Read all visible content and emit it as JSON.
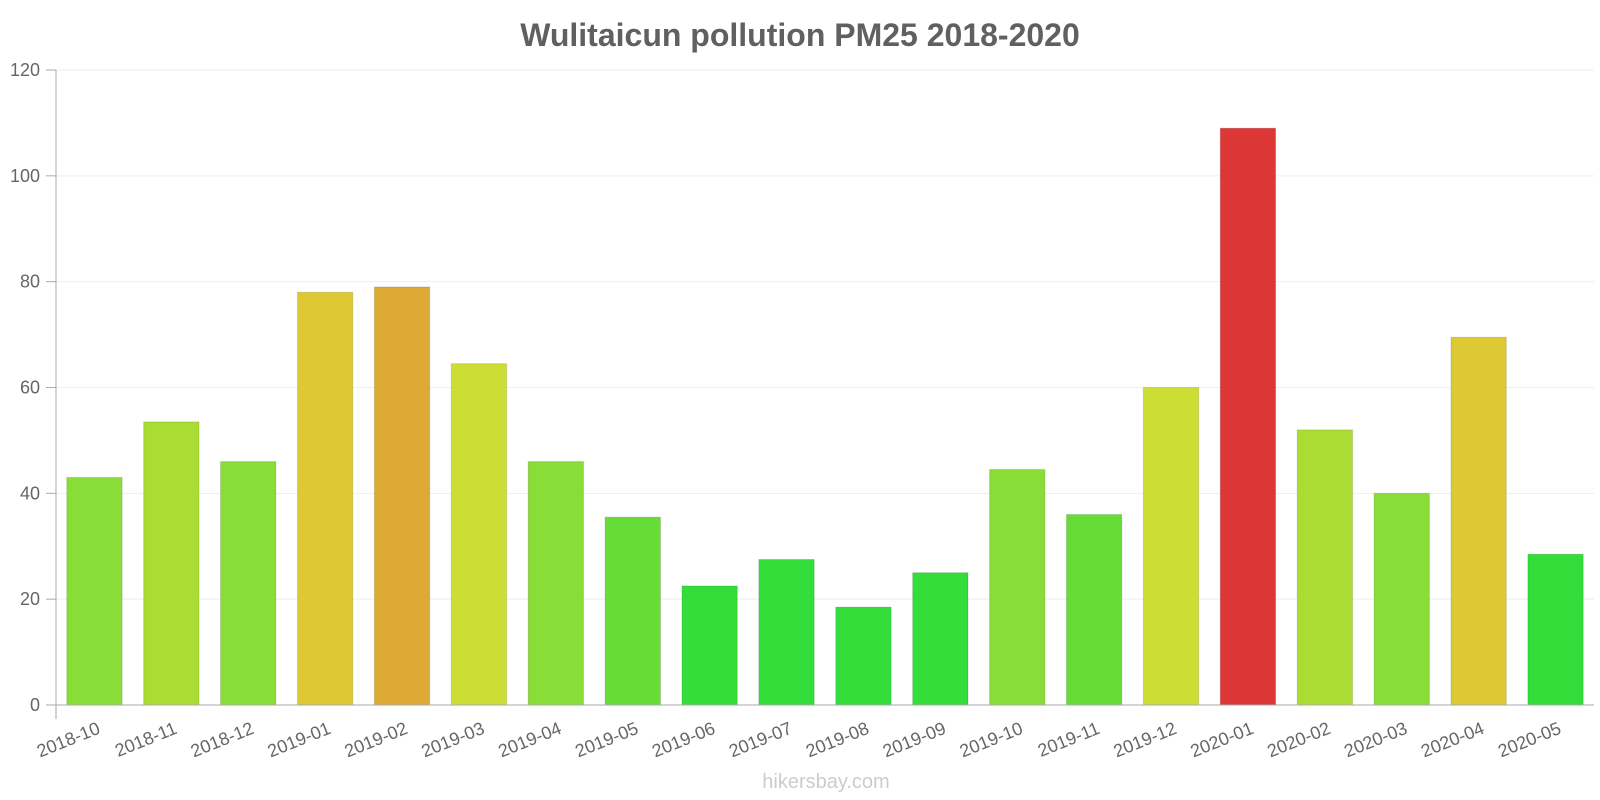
{
  "chart_data": {
    "type": "bar",
    "title": "Wulitaicun pollution PM25 2018-2020",
    "xlabel": "",
    "ylabel": "",
    "ylim": [
      0,
      120
    ],
    "yticks": [
      0,
      20,
      40,
      60,
      80,
      100,
      120
    ],
    "grid": true,
    "categories": [
      "2018-10",
      "2018-11",
      "2018-12",
      "2019-01",
      "2019-02",
      "2019-03",
      "2019-04",
      "2019-05",
      "2019-06",
      "2019-07",
      "2019-08",
      "2019-09",
      "2019-10",
      "2019-11",
      "2019-12",
      "2020-01",
      "2020-02",
      "2020-03",
      "2020-04",
      "2020-05"
    ],
    "values": [
      43,
      53.5,
      46,
      78,
      79,
      64.5,
      46,
      35.5,
      22.5,
      27.5,
      18.5,
      25,
      44.5,
      36,
      60,
      109,
      52,
      40,
      69.5,
      28.5
    ],
    "bar_colors": [
      "#88dd36",
      "#aadd33",
      "#88dd36",
      "#ddc933",
      "#ddaa36",
      "#ccdd33",
      "#88dd36",
      "#66dd36",
      "#33dd3a",
      "#33dd3a",
      "#33dd3a",
      "#33dd3a",
      "#88dd36",
      "#66dd36",
      "#ccdd33",
      "#dd3636",
      "#aadd33",
      "#88dd36",
      "#ddc933",
      "#33dd3a"
    ],
    "watermark": "hikersbay.com"
  }
}
